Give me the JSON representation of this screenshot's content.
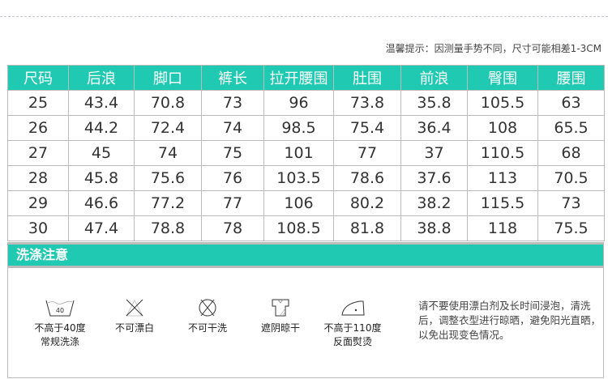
{
  "note": "温馨提示：因测量手势不同，尺寸可能相差1-3CM",
  "table": {
    "headers": [
      "尺码",
      "后浪",
      "脚口",
      "裤长",
      "拉开腰围",
      "肚围",
      "前浪",
      "臀围",
      "腰围"
    ],
    "rows": [
      [
        "25",
        "43.4",
        "70.8",
        "73",
        "96",
        "73.8",
        "35.8",
        "105.5",
        "63"
      ],
      [
        "26",
        "44.2",
        "72.4",
        "74",
        "98.5",
        "75.4",
        "36.4",
        "108",
        "65.5"
      ],
      [
        "27",
        "45",
        "74",
        "75",
        "101",
        "77",
        "37",
        "110.5",
        "68"
      ],
      [
        "28",
        "45.8",
        "75.6",
        "76",
        "103.5",
        "78.6",
        "37.6",
        "113",
        "70.5"
      ],
      [
        "29",
        "46.6",
        "77.2",
        "77",
        "106",
        "80.2",
        "38.2",
        "115.5",
        "73"
      ],
      [
        "30",
        "47.4",
        "78.8",
        "78",
        "108.5",
        "81.8",
        "38.8",
        "118",
        "75.5"
      ]
    ]
  },
  "wash": {
    "title": "洗涤注意",
    "icon_number": "40",
    "items": [
      {
        "icon": "wash-40-icon",
        "line1": "不高于40度",
        "line2": "常规洗涤"
      },
      {
        "icon": "no-bleach-icon",
        "line1": "不可漂白",
        "line2": ""
      },
      {
        "icon": "no-dry-clean-icon",
        "line1": "不可干洗",
        "line2": ""
      },
      {
        "icon": "shade-dry-icon",
        "line1": "遮阴晾干",
        "line2": ""
      },
      {
        "icon": "iron-icon",
        "line1": "不高于110度",
        "line2": "反面熨烫"
      }
    ],
    "description": "请不要使用漂白剂及长时间浸泡，清洗后，调整衣型进行晾晒，避免阳光直晒，以免出现变色情况。"
  },
  "colors": {
    "accent": "#20c9b2"
  }
}
